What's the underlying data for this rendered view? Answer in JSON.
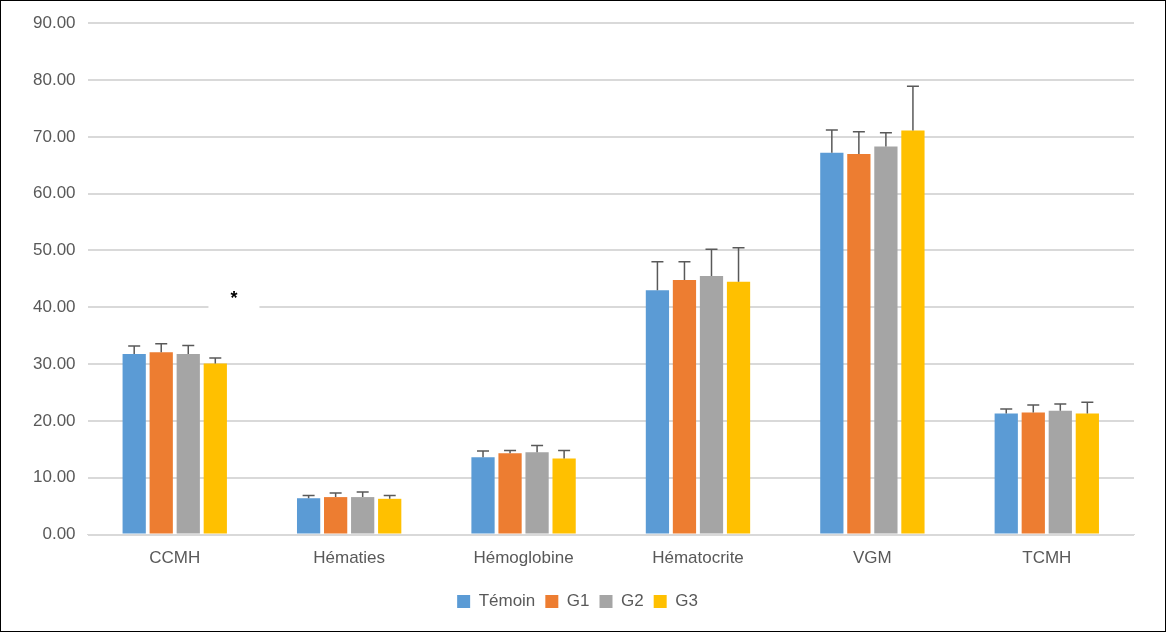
{
  "chart_data": {
    "type": "bar",
    "categories": [
      "CCMH",
      "Hématies",
      "Hémoglobine",
      "Hématocrite",
      "VGM",
      "TCMH"
    ],
    "series": [
      {
        "name": "Témoin",
        "color": "#5b9bd5",
        "values": [
          31.8,
          6.4,
          13.6,
          43.0,
          67.2,
          21.3
        ],
        "errors": [
          1.4,
          0.5,
          1.1,
          5.0,
          4.0,
          0.8
        ]
      },
      {
        "name": "G1",
        "color": "#ed7d31",
        "values": [
          32.1,
          6.6,
          14.3,
          44.8,
          67.0,
          21.5
        ],
        "errors": [
          1.5,
          0.7,
          0.5,
          3.2,
          3.9,
          1.3
        ]
      },
      {
        "name": "G2",
        "color": "#a5a5a5",
        "values": [
          31.8,
          6.6,
          14.5,
          45.5,
          68.3,
          21.8
        ],
        "errors": [
          1.5,
          0.9,
          1.2,
          4.7,
          2.4,
          1.2
        ]
      },
      {
        "name": "G3",
        "color": "#ffc000",
        "values": [
          30.1,
          6.3,
          13.4,
          44.5,
          71.1,
          21.3
        ],
        "errors": [
          1.0,
          0.6,
          1.4,
          6.0,
          7.8,
          2.0
        ]
      }
    ],
    "ylim": [
      0,
      90
    ],
    "yticks": [
      {
        "value": 0,
        "label": "0.00"
      },
      {
        "value": 10,
        "label": "10.00"
      },
      {
        "value": 20,
        "label": "20.00"
      },
      {
        "value": 30,
        "label": "30.00"
      },
      {
        "value": 40,
        "label": "40.00"
      },
      {
        "value": 50,
        "label": "50.00"
      },
      {
        "value": 60,
        "label": "60.00"
      },
      {
        "value": 70,
        "label": "70.00"
      },
      {
        "value": 80,
        "label": "80.00"
      },
      {
        "value": 90,
        "label": "90.00"
      }
    ],
    "grid": "y",
    "legend": "bottom",
    "annotations": [
      "*"
    ]
  }
}
